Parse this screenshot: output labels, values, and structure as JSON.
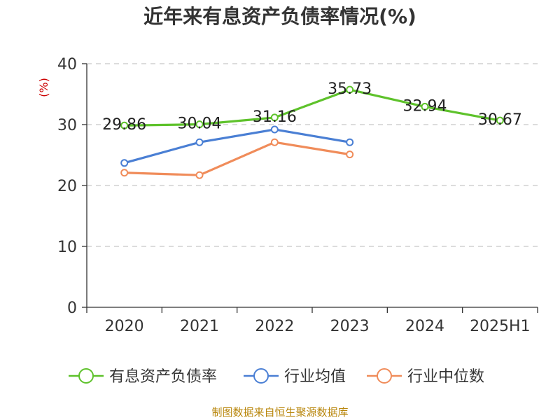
{
  "chart_data": {
    "type": "line",
    "title": "近年来有息资产负债率情况(%)",
    "ylabel": "(%)",
    "categories": [
      "2020",
      "2021",
      "2022",
      "2023",
      "2024",
      "2025H1"
    ],
    "ylim": [
      0,
      40
    ],
    "yticks": [
      0,
      10,
      20,
      30,
      40
    ],
    "grid": true,
    "legend_position": "bottom",
    "series": [
      {
        "name": "有息资产负债率",
        "color": "#5ec22b",
        "values": [
          29.86,
          30.04,
          31.16,
          35.73,
          32.94,
          30.67
        ],
        "labels": [
          "29.86",
          "30.04",
          "31.16",
          "35.73",
          "32.94",
          "30.67"
        ]
      },
      {
        "name": "行业均值",
        "color": "#4a7fd4",
        "values": [
          23.7,
          27.1,
          29.2,
          27.1,
          null,
          null
        ]
      },
      {
        "name": "行业中位数",
        "color": "#f08c5a",
        "values": [
          22.1,
          21.7,
          27.1,
          25.1,
          null,
          null
        ]
      }
    ]
  },
  "source": "制图数据来自恒生聚源数据库"
}
